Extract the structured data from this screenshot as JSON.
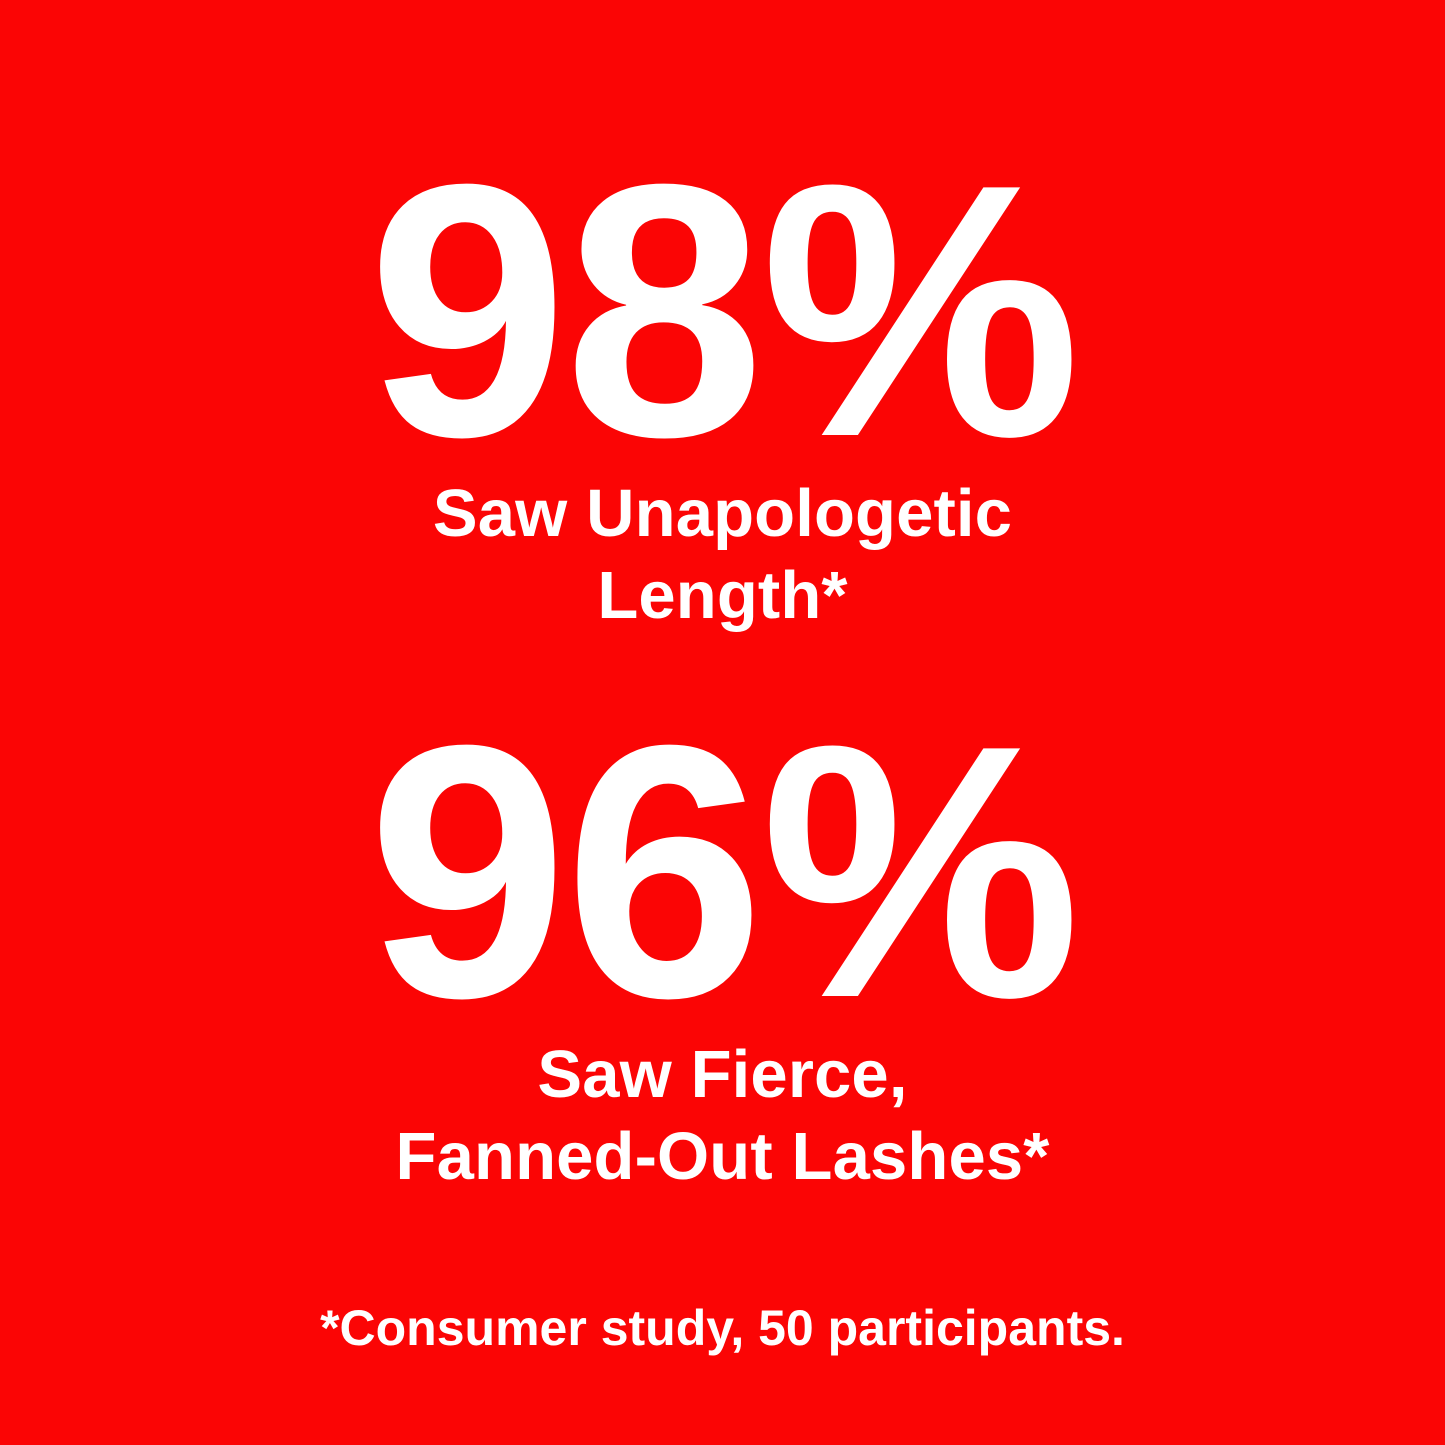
{
  "colors": {
    "background": "#fb0505",
    "text": "#ffffff"
  },
  "stats": [
    {
      "value": "98%",
      "label_lines": [
        "Saw Unapologetic",
        "Length*"
      ]
    },
    {
      "value": "96%",
      "label_lines": [
        "Saw Fierce,",
        "Fanned-Out Lashes*"
      ]
    }
  ],
  "footnote": "*Consumer study, 50 participants."
}
